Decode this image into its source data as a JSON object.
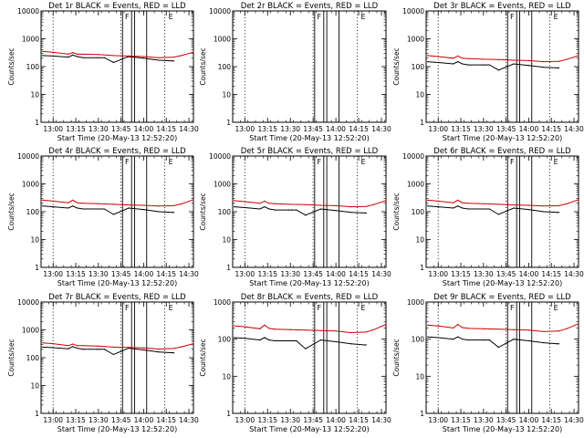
{
  "figure": {
    "background": "#ffffff",
    "colors": {
      "events": "#000000",
      "lld": "#cc0000",
      "frame": "#000000"
    }
  },
  "chart_data": [
    {
      "type": "line",
      "title": "Det 1r BLACK = Events, RED = LLD",
      "xlabel": "Start Time (20-May-13 12:52:20)",
      "ylabel": "Counts/sec",
      "y_scale": "log",
      "ylim": [
        1,
        10000
      ],
      "xlim": [
        "12:52",
        "14:33"
      ],
      "x_ticks": [
        "13:00",
        "13:15",
        "13:30",
        "13:45",
        "14:00",
        "14:15",
        "14:30"
      ],
      "y_ticks": [
        "1",
        "10",
        "100",
        "1000",
        "10000"
      ],
      "dotted_x": [
        "13:00",
        "13:45",
        "14:14"
      ],
      "solid_x": [
        "13:46",
        "13:52",
        "13:54",
        "14:02"
      ],
      "markers": [
        {
          "x": "13:49",
          "label": "F"
        },
        {
          "x": "14:18",
          "label": "E"
        }
      ],
      "series": [
        {
          "name": "Events",
          "color": "#000000",
          "x": [
            "12:53",
            "13:00",
            "13:10",
            "13:13",
            "13:16",
            "13:20",
            "13:29",
            "13:31",
            "13:34",
            "13:40",
            "13:50",
            "14:00",
            "14:10",
            "14:19",
            "14:20"
          ],
          "values": [
            250,
            240,
            220,
            260,
            230,
            210,
            210,
            210,
            210,
            140,
            230,
            200,
            170,
            160,
            160
          ]
        },
        {
          "name": "LLD",
          "color": "#cc0000",
          "x": [
            "12:53",
            "13:00",
            "13:10",
            "13:13",
            "13:16",
            "13:20",
            "13:30",
            "13:40",
            "13:50",
            "14:00",
            "14:10",
            "14:20",
            "14:25",
            "14:33"
          ],
          "values": [
            350,
            330,
            280,
            320,
            280,
            280,
            270,
            250,
            240,
            230,
            210,
            220,
            250,
            330
          ]
        }
      ]
    },
    {
      "type": "line",
      "title": "Det 2r BLACK = Events, RED = LLD",
      "xlabel": "Start Time (20-May-13 12:52:20)",
      "ylabel": "Counts/sec",
      "y_scale": "log",
      "ylim": [
        1,
        10000
      ],
      "xlim": [
        "12:52",
        "14:33"
      ],
      "x_ticks": [
        "13:00",
        "13:15",
        "13:30",
        "13:45",
        "14:00",
        "14:15",
        "14:30"
      ],
      "y_ticks": [
        "1",
        "10",
        "100",
        "1000",
        "10000"
      ],
      "dotted_x": [
        "13:00",
        "13:45",
        "14:14"
      ],
      "solid_x": [
        "13:46",
        "13:52",
        "13:54",
        "14:02"
      ],
      "markers": [
        {
          "x": "13:49",
          "label": "F"
        },
        {
          "x": "14:18",
          "label": "E"
        }
      ],
      "series": []
    },
    {
      "type": "line",
      "title": "Det 3r BLACK = Events, RED = LLD",
      "xlabel": "Start Time (20-May-13 12:52:20)",
      "ylabel": "Counts/sec",
      "y_scale": "log",
      "ylim": [
        1,
        10000
      ],
      "xlim": [
        "12:52",
        "14:33"
      ],
      "x_ticks": [
        "13:00",
        "13:15",
        "13:30",
        "13:45",
        "14:00",
        "14:15",
        "14:30"
      ],
      "y_ticks": [
        "1",
        "10",
        "100",
        "1000",
        "10000"
      ],
      "dotted_x": [
        "13:00",
        "13:45",
        "14:14"
      ],
      "solid_x": [
        "13:46",
        "13:52",
        "13:54",
        "14:02"
      ],
      "markers": [
        {
          "x": "13:49",
          "label": "F"
        },
        {
          "x": "14:18",
          "label": "E"
        }
      ],
      "series": [
        {
          "name": "Events",
          "color": "#000000",
          "x": [
            "12:53",
            "13:00",
            "13:10",
            "13:13",
            "13:16",
            "13:20",
            "13:29",
            "13:31",
            "13:34",
            "13:40",
            "13:50",
            "14:00",
            "14:10",
            "14:19",
            "14:20"
          ],
          "values": [
            150,
            140,
            125,
            150,
            125,
            115,
            115,
            115,
            115,
            75,
            125,
            110,
            95,
            90,
            90
          ]
        },
        {
          "name": "LLD",
          "color": "#cc0000",
          "x": [
            "12:53",
            "13:00",
            "13:10",
            "13:13",
            "13:16",
            "13:20",
            "13:30",
            "13:40",
            "13:50",
            "14:00",
            "14:10",
            "14:20",
            "14:25",
            "14:33"
          ],
          "values": [
            250,
            230,
            200,
            240,
            200,
            195,
            185,
            180,
            170,
            165,
            150,
            155,
            180,
            250
          ]
        }
      ]
    },
    {
      "type": "line",
      "title": "Det 4r BLACK = Events, RED = LLD",
      "xlabel": "Start Time (20-May-13 12:52:20)",
      "ylabel": "Counts/sec",
      "y_scale": "log",
      "ylim": [
        1,
        10000
      ],
      "xlim": [
        "12:52",
        "14:33"
      ],
      "x_ticks": [
        "13:00",
        "13:15",
        "13:30",
        "13:45",
        "14:00",
        "14:15",
        "14:30"
      ],
      "y_ticks": [
        "1",
        "10",
        "100",
        "1000",
        "10000"
      ],
      "dotted_x": [
        "13:00",
        "13:45",
        "14:14"
      ],
      "solid_x": [
        "13:46",
        "13:52",
        "13:54",
        "14:02"
      ],
      "markers": [
        {
          "x": "13:49",
          "label": "F"
        },
        {
          "x": "14:18",
          "label": "E"
        }
      ],
      "series": [
        {
          "name": "Events",
          "color": "#000000",
          "x": [
            "12:53",
            "13:00",
            "13:10",
            "13:13",
            "13:16",
            "13:20",
            "13:29",
            "13:31",
            "13:34",
            "13:40",
            "13:50",
            "14:00",
            "14:10",
            "14:19",
            "14:20"
          ],
          "values": [
            160,
            150,
            135,
            160,
            135,
            125,
            125,
            125,
            125,
            80,
            135,
            120,
            100,
            95,
            95
          ]
        },
        {
          "name": "LLD",
          "color": "#cc0000",
          "x": [
            "12:53",
            "13:00",
            "13:10",
            "13:13",
            "13:16",
            "13:20",
            "13:30",
            "13:40",
            "13:50",
            "14:00",
            "14:10",
            "14:20",
            "14:25",
            "14:33"
          ],
          "values": [
            260,
            240,
            210,
            260,
            210,
            200,
            195,
            185,
            175,
            170,
            160,
            165,
            190,
            270
          ]
        }
      ]
    },
    {
      "type": "line",
      "title": "Det 5r BLACK = Events, RED = LLD",
      "xlabel": "Start Time (20-May-13 12:52:20)",
      "ylabel": "Counts/sec",
      "y_scale": "log",
      "ylim": [
        1,
        10000
      ],
      "xlim": [
        "12:52",
        "14:33"
      ],
      "x_ticks": [
        "13:00",
        "13:15",
        "13:30",
        "13:45",
        "14:00",
        "14:15",
        "14:30"
      ],
      "y_ticks": [
        "1",
        "10",
        "100",
        "1000",
        "10000"
      ],
      "dotted_x": [
        "13:00",
        "13:45",
        "14:14"
      ],
      "solid_x": [
        "13:46",
        "13:52",
        "13:54",
        "14:02"
      ],
      "markers": [
        {
          "x": "13:49",
          "label": "F"
        },
        {
          "x": "14:18",
          "label": "E"
        }
      ],
      "series": [
        {
          "name": "Events",
          "color": "#000000",
          "x": [
            "12:53",
            "13:00",
            "13:10",
            "13:13",
            "13:16",
            "13:20",
            "13:29",
            "13:31",
            "13:34",
            "13:40",
            "13:50",
            "14:00",
            "14:10",
            "14:19",
            "14:20"
          ],
          "values": [
            150,
            140,
            125,
            150,
            125,
            115,
            115,
            115,
            115,
            75,
            125,
            110,
            95,
            90,
            90
          ]
        },
        {
          "name": "LLD",
          "color": "#cc0000",
          "x": [
            "12:53",
            "13:00",
            "13:10",
            "13:13",
            "13:16",
            "13:20",
            "13:30",
            "13:40",
            "13:50",
            "14:00",
            "14:10",
            "14:20",
            "14:25",
            "14:33"
          ],
          "values": [
            250,
            230,
            200,
            240,
            200,
            195,
            185,
            180,
            170,
            165,
            150,
            155,
            180,
            250
          ]
        }
      ]
    },
    {
      "type": "line",
      "title": "Det 6r BLACK = Events, RED = LLD",
      "xlabel": "Start Time (20-May-13 12:52:20)",
      "ylabel": "Counts/sec",
      "y_scale": "log",
      "ylim": [
        1,
        10000
      ],
      "xlim": [
        "12:52",
        "14:33"
      ],
      "x_ticks": [
        "13:00",
        "13:15",
        "13:30",
        "13:45",
        "14:00",
        "14:15",
        "14:30"
      ],
      "y_ticks": [
        "1",
        "10",
        "100",
        "1000",
        "10000"
      ],
      "dotted_x": [
        "13:00",
        "13:45",
        "14:14"
      ],
      "solid_x": [
        "13:46",
        "13:52",
        "13:54",
        "14:02"
      ],
      "markers": [
        {
          "x": "13:49",
          "label": "F"
        },
        {
          "x": "14:18",
          "label": "E"
        }
      ],
      "series": [
        {
          "name": "Events",
          "color": "#000000",
          "x": [
            "12:53",
            "13:00",
            "13:10",
            "13:13",
            "13:16",
            "13:20",
            "13:29",
            "13:31",
            "13:34",
            "13:40",
            "13:50",
            "14:00",
            "14:10",
            "14:19",
            "14:20"
          ],
          "values": [
            160,
            150,
            135,
            160,
            135,
            125,
            125,
            125,
            125,
            80,
            135,
            120,
            100,
            95,
            95
          ]
        },
        {
          "name": "LLD",
          "color": "#cc0000",
          "x": [
            "12:53",
            "13:00",
            "13:10",
            "13:13",
            "13:16",
            "13:20",
            "13:30",
            "13:40",
            "13:50",
            "14:00",
            "14:10",
            "14:20",
            "14:25",
            "14:33"
          ],
          "values": [
            260,
            240,
            210,
            260,
            210,
            200,
            195,
            185,
            175,
            170,
            160,
            165,
            190,
            270
          ]
        }
      ]
    },
    {
      "type": "line",
      "title": "Det 7r BLACK = Events, RED = LLD",
      "xlabel": "Start Time (20-May-13 12:52:20)",
      "ylabel": "Counts/sec",
      "y_scale": "log",
      "ylim": [
        1,
        10000
      ],
      "xlim": [
        "12:52",
        "14:33"
      ],
      "x_ticks": [
        "13:00",
        "13:15",
        "13:30",
        "13:45",
        "14:00",
        "14:15",
        "14:30"
      ],
      "y_ticks": [
        "1",
        "10",
        "100",
        "1000",
        "10000"
      ],
      "dotted_x": [
        "13:00",
        "13:45",
        "14:14"
      ],
      "solid_x": [
        "13:46",
        "13:52",
        "13:54",
        "14:02"
      ],
      "markers": [
        {
          "x": "13:49",
          "label": "F"
        },
        {
          "x": "14:18",
          "label": "E"
        }
      ],
      "series": [
        {
          "name": "Events",
          "color": "#000000",
          "x": [
            "12:53",
            "13:00",
            "13:10",
            "13:13",
            "13:16",
            "13:20",
            "13:29",
            "13:31",
            "13:34",
            "13:40",
            "13:50",
            "14:00",
            "14:10",
            "14:19",
            "14:20"
          ],
          "values": [
            240,
            230,
            210,
            250,
            220,
            200,
            200,
            200,
            200,
            130,
            220,
            190,
            160,
            150,
            150
          ]
        },
        {
          "name": "LLD",
          "color": "#cc0000",
          "x": [
            "12:53",
            "13:00",
            "13:10",
            "13:13",
            "13:16",
            "13:20",
            "13:30",
            "13:40",
            "13:50",
            "14:00",
            "14:10",
            "14:20",
            "14:25",
            "14:33"
          ],
          "values": [
            340,
            320,
            270,
            310,
            270,
            270,
            260,
            240,
            235,
            225,
            205,
            215,
            245,
            320
          ]
        }
      ]
    },
    {
      "type": "line",
      "title": "Det 8r BLACK = Events, RED = LLD",
      "xlabel": "Start Time (20-May-13 12:52:20)",
      "ylabel": "Counts/sec",
      "y_scale": "log",
      "ylim": [
        1,
        1000
      ],
      "xlim": [
        "12:52",
        "14:33"
      ],
      "x_ticks": [
        "13:00",
        "13:15",
        "13:30",
        "13:45",
        "14:00",
        "14:15",
        "14:30"
      ],
      "y_ticks": [
        "1",
        "10",
        "100",
        "1000"
      ],
      "dotted_x": [
        "13:00",
        "13:45",
        "14:14"
      ],
      "solid_x": [
        "13:46",
        "13:52",
        "13:54",
        "14:02"
      ],
      "markers": [
        {
          "x": "13:49",
          "label": "F"
        },
        {
          "x": "14:18",
          "label": "E"
        }
      ],
      "series": [
        {
          "name": "Events",
          "color": "#000000",
          "x": [
            "12:53",
            "13:00",
            "13:10",
            "13:13",
            "13:16",
            "13:20",
            "13:29",
            "13:31",
            "13:34",
            "13:40",
            "13:50",
            "14:00",
            "14:10",
            "14:19",
            "14:20"
          ],
          "values": [
            110,
            105,
            95,
            110,
            95,
            90,
            90,
            90,
            90,
            55,
            95,
            85,
            75,
            70,
            70
          ]
        },
        {
          "name": "LLD",
          "color": "#cc0000",
          "x": [
            "12:53",
            "13:00",
            "13:10",
            "13:13",
            "13:16",
            "13:20",
            "13:30",
            "13:40",
            "13:50",
            "14:00",
            "14:10",
            "14:20",
            "14:25",
            "14:33"
          ],
          "values": [
            230,
            215,
            190,
            240,
            195,
            185,
            180,
            175,
            170,
            165,
            150,
            155,
            180,
            250
          ]
        }
      ]
    },
    {
      "type": "line",
      "title": "Det 9r BLACK = Events, RED = LLD",
      "xlabel": "Start Time (20-May-13 12:52:20)",
      "ylabel": "Counts/sec",
      "y_scale": "log",
      "ylim": [
        1,
        1000
      ],
      "xlim": [
        "12:52",
        "14:33"
      ],
      "x_ticks": [
        "13:00",
        "13:15",
        "13:30",
        "13:45",
        "14:00",
        "14:15",
        "14:30"
      ],
      "y_ticks": [
        "1",
        "10",
        "100",
        "1000"
      ],
      "dotted_x": [
        "13:00",
        "13:45",
        "14:14"
      ],
      "solid_x": [
        "13:46",
        "13:52",
        "13:54",
        "14:02"
      ],
      "markers": [
        {
          "x": "13:49",
          "label": "F"
        },
        {
          "x": "14:18",
          "label": "E"
        }
      ],
      "series": [
        {
          "name": "Events",
          "color": "#000000",
          "x": [
            "12:53",
            "13:00",
            "13:10",
            "13:13",
            "13:16",
            "13:20",
            "13:29",
            "13:31",
            "13:34",
            "13:40",
            "13:50",
            "14:00",
            "14:10",
            "14:19",
            "14:20"
          ],
          "values": [
            115,
            110,
            100,
            115,
            100,
            95,
            95,
            95,
            95,
            60,
            100,
            90,
            80,
            75,
            75
          ]
        },
        {
          "name": "LLD",
          "color": "#cc0000",
          "x": [
            "12:53",
            "13:00",
            "13:10",
            "13:13",
            "13:16",
            "13:20",
            "13:30",
            "13:40",
            "13:50",
            "14:00",
            "14:10",
            "14:20",
            "14:25",
            "14:33"
          ],
          "values": [
            240,
            225,
            200,
            250,
            205,
            195,
            190,
            185,
            180,
            175,
            160,
            165,
            190,
            260
          ]
        }
      ]
    }
  ]
}
